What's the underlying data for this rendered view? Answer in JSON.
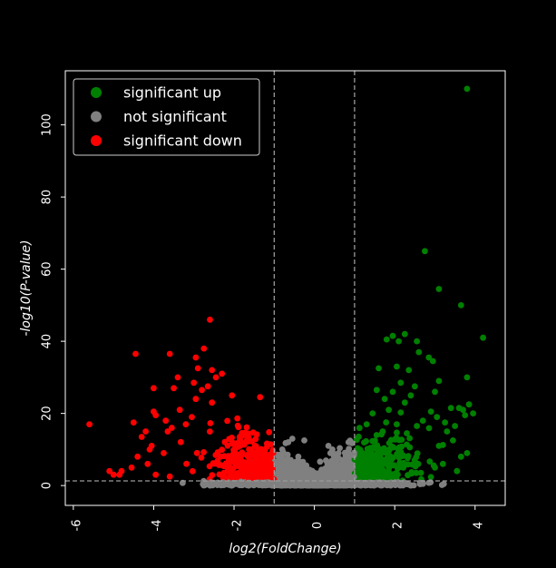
{
  "chart_data": {
    "type": "scatter",
    "title": "",
    "xlabel": "log2(FoldChange)",
    "ylabel": "-log10(P-value)",
    "xlim": [
      -6.2,
      4.75
    ],
    "ylim": [
      -5.5,
      115
    ],
    "x_ticks": [
      -6,
      -4,
      -2,
      0,
      2,
      4
    ],
    "y_ticks": [
      0,
      20,
      40,
      60,
      80,
      100
    ],
    "thresholds": {
      "fold_change": [
        -1,
        1
      ],
      "p_value": 1.3
    },
    "grid": false,
    "legend_position": "top-left",
    "colors": {
      "up": "#008000",
      "ns": "#808080",
      "down": "#ff0000",
      "background": "#000000",
      "axes": "#ffffff",
      "threshold_line": "#9a9a9a"
    },
    "series": [
      {
        "name": "significant up",
        "color": "#008000",
        "points": [
          [
            3.8,
            110
          ],
          [
            2.75,
            65
          ],
          [
            3.1,
            54.5
          ],
          [
            3.65,
            50
          ],
          [
            4.2,
            41
          ],
          [
            1.95,
            41.5
          ],
          [
            2.25,
            42
          ],
          [
            2.55,
            40
          ],
          [
            2.1,
            40
          ],
          [
            1.8,
            40.5
          ],
          [
            2.6,
            37
          ],
          [
            2.85,
            35.5
          ],
          [
            2.95,
            34.5
          ],
          [
            1.6,
            32.5
          ],
          [
            2.05,
            33
          ],
          [
            2.35,
            32
          ],
          [
            3.8,
            30
          ],
          [
            2.15,
            28.5
          ],
          [
            3.1,
            29
          ],
          [
            2.5,
            27.5
          ],
          [
            1.95,
            26
          ],
          [
            1.55,
            26.5
          ],
          [
            2.4,
            25
          ],
          [
            3.0,
            26
          ],
          [
            1.75,
            24
          ],
          [
            2.25,
            23
          ],
          [
            3.85,
            22.5
          ],
          [
            3.6,
            21.5
          ],
          [
            3.7,
            21
          ],
          [
            3.4,
            21.5
          ],
          [
            3.95,
            20
          ],
          [
            3.75,
            19.5
          ],
          [
            2.9,
            20.5
          ],
          [
            1.45,
            20
          ],
          [
            1.85,
            21
          ],
          [
            3.05,
            19
          ],
          [
            2.7,
            18
          ],
          [
            3.25,
            17.5
          ],
          [
            1.3,
            17
          ],
          [
            2.05,
            17
          ],
          [
            3.5,
            16.5
          ],
          [
            2.55,
            16.5
          ],
          [
            3.3,
            15
          ],
          [
            1.7,
            15
          ],
          [
            2.3,
            14.5
          ],
          [
            3.45,
            12.5
          ],
          [
            3.1,
            11
          ],
          [
            3.8,
            9
          ],
          [
            3.65,
            8
          ],
          [
            3.2,
            6
          ],
          [
            3.0,
            5
          ],
          [
            2.65,
            3.5
          ],
          [
            3.55,
            4
          ]
        ]
      },
      {
        "name": "not significant",
        "color": "#808080",
        "points": [
          [
            -0.55,
            13
          ],
          [
            -0.25,
            12.5
          ],
          [
            -0.65,
            12
          ],
          [
            0.85,
            12
          ],
          [
            -0.8,
            10
          ],
          [
            0.6,
            9
          ],
          [
            0.75,
            7
          ],
          [
            -0.4,
            8
          ],
          [
            0.95,
            5
          ],
          [
            0.35,
            11
          ],
          [
            0.45,
            10
          ],
          [
            0.4,
            9
          ]
        ]
      },
      {
        "name": "significant down",
        "color": "#ff0000",
        "points": [
          [
            -2.6,
            46
          ],
          [
            -2.75,
            38
          ],
          [
            -2.95,
            35.5
          ],
          [
            -4.45,
            36.5
          ],
          [
            -3.6,
            36.5
          ],
          [
            -2.9,
            32.5
          ],
          [
            -2.55,
            32
          ],
          [
            -2.3,
            31
          ],
          [
            -2.45,
            30
          ],
          [
            -3.4,
            30
          ],
          [
            -3.0,
            28.5
          ],
          [
            -2.65,
            27.5
          ],
          [
            -3.5,
            27
          ],
          [
            -2.8,
            26.5
          ],
          [
            -4.0,
            27
          ],
          [
            -1.35,
            24.5
          ],
          [
            -2.05,
            25
          ],
          [
            -2.95,
            24
          ],
          [
            -2.55,
            23
          ],
          [
            -3.35,
            21
          ],
          [
            -4.0,
            20.5
          ],
          [
            -3.7,
            18
          ],
          [
            -3.05,
            19
          ],
          [
            -3.95,
            19.5
          ],
          [
            -5.6,
            17
          ],
          [
            -4.5,
            17.5
          ],
          [
            -3.2,
            17
          ],
          [
            -4.2,
            15
          ],
          [
            -3.55,
            16
          ],
          [
            -3.65,
            15
          ],
          [
            -4.3,
            13.5
          ],
          [
            -4.1,
            10
          ],
          [
            -4.05,
            11
          ],
          [
            -4.4,
            8
          ],
          [
            -3.75,
            9
          ],
          [
            -4.15,
            6
          ],
          [
            -4.8,
            4
          ],
          [
            -5.1,
            4
          ],
          [
            -4.55,
            5
          ],
          [
            -4.85,
            3
          ],
          [
            -5.0,
            3
          ],
          [
            -3.95,
            3
          ],
          [
            -3.6,
            2.5
          ]
        ]
      }
    ]
  },
  "legend": {
    "entries": [
      {
        "label": "significant up",
        "color": "#008000"
      },
      {
        "label": "not significant",
        "color": "#808080"
      },
      {
        "label": "significant down",
        "color": "#ff0000"
      }
    ]
  }
}
